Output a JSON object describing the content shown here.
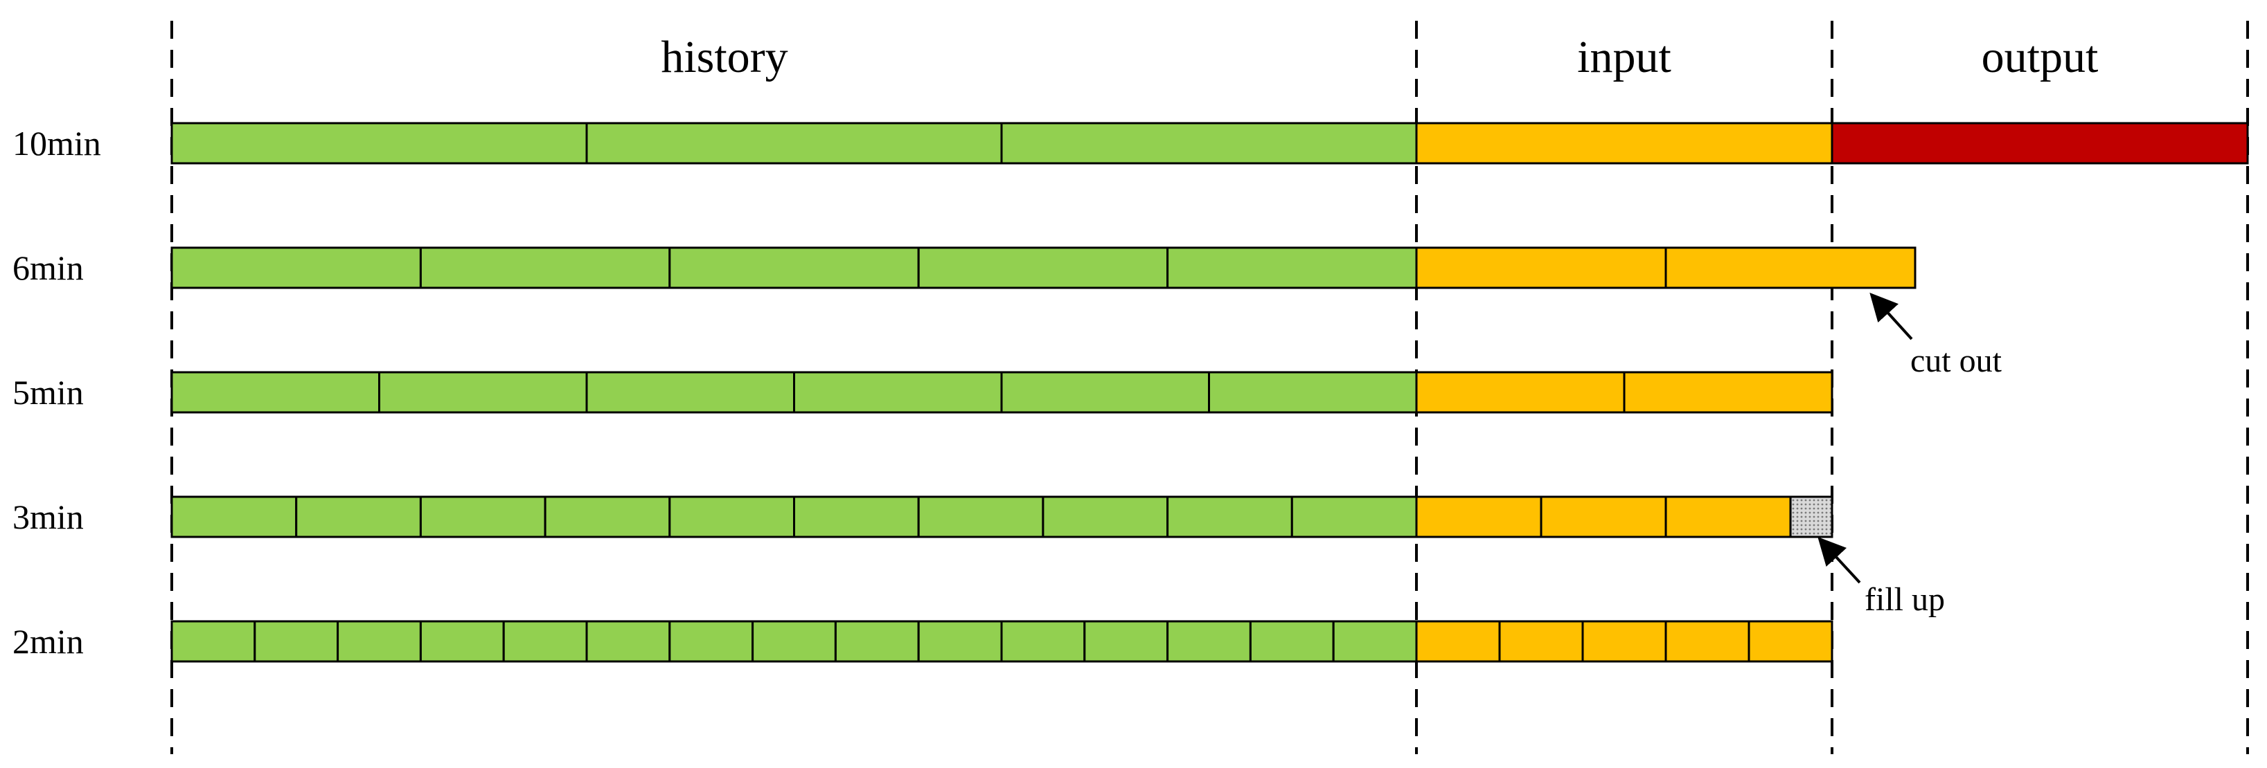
{
  "headers": {
    "history": "history",
    "input": "input",
    "output": "output"
  },
  "colors": {
    "history": "#92D050",
    "input": "#FFC000",
    "output": "#C00000",
    "fill_pad": "#C8C8C8",
    "outline": "#000000"
  },
  "rows": [
    {
      "label": "10min",
      "history_segments": 3,
      "input_segments": 1,
      "output_segments": 1,
      "overflow": 0,
      "padding": 0
    },
    {
      "label": "6min",
      "history_segments": 5,
      "input_segments": 2,
      "output_segments": 0,
      "overflow": 0.2,
      "padding": 0
    },
    {
      "label": "5min",
      "history_segments": 6,
      "input_segments": 2,
      "output_segments": 0,
      "overflow": 0,
      "padding": 0
    },
    {
      "label": "3min",
      "history_segments": 10,
      "input_segments": 4,
      "output_segments": 0,
      "overflow": 0,
      "padding": 0.333
    },
    {
      "label": "2min",
      "history_segments": 15,
      "input_segments": 5,
      "output_segments": 0,
      "overflow": 0,
      "padding": 0
    }
  ],
  "annotations": {
    "cut_out": "cut out",
    "fill_up": "fill up"
  }
}
